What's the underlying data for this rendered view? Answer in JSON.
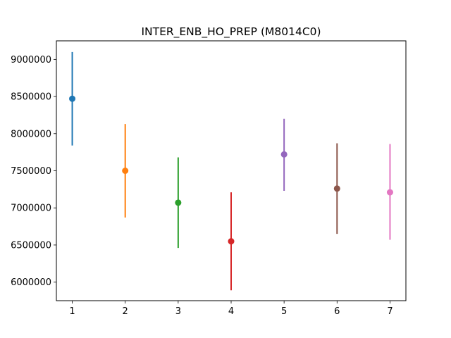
{
  "chart_data": {
    "type": "scatter",
    "title": "INTER_ENB_HO_PREP (M8014C0)",
    "xlabel": "",
    "ylabel": "",
    "xlim": [
      0.7,
      7.3
    ],
    "ylim": [
      5750000,
      9250000
    ],
    "x_ticks": [
      1,
      2,
      3,
      4,
      5,
      6,
      7
    ],
    "y_ticks": [
      6000000,
      6500000,
      7000000,
      7500000,
      8000000,
      8500000,
      9000000
    ],
    "y_tick_labels": [
      "6000000",
      "6500000",
      "7000000",
      "7500000",
      "8000000",
      "8500000",
      "9000000"
    ],
    "grid": false,
    "series": [
      {
        "x": 1,
        "y": 8470000,
        "y_low": 7840000,
        "y_high": 9100000,
        "color": "#1f77b4"
      },
      {
        "x": 2,
        "y": 7500000,
        "y_low": 6870000,
        "y_high": 8130000,
        "color": "#ff7f0e"
      },
      {
        "x": 3,
        "y": 7070000,
        "y_low": 6460000,
        "y_high": 7680000,
        "color": "#2ca02c"
      },
      {
        "x": 4,
        "y": 6550000,
        "y_low": 5890000,
        "y_high": 7210000,
        "color": "#d62728"
      },
      {
        "x": 5,
        "y": 7720000,
        "y_low": 7230000,
        "y_high": 8200000,
        "color": "#9467bd"
      },
      {
        "x": 6,
        "y": 7260000,
        "y_low": 6650000,
        "y_high": 7870000,
        "color": "#8c564b"
      },
      {
        "x": 7,
        "y": 7210000,
        "y_low": 6570000,
        "y_high": 7860000,
        "color": "#e377c2"
      }
    ]
  }
}
